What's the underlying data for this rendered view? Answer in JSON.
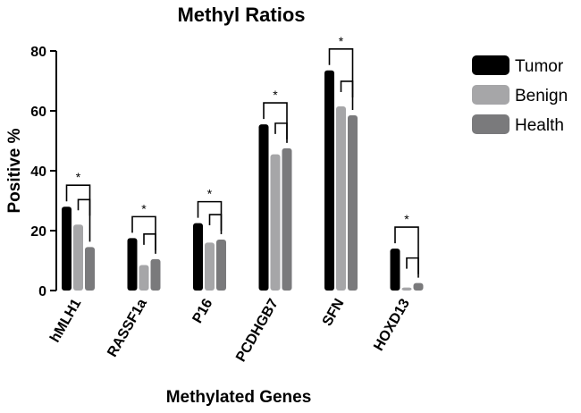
{
  "chart_data": {
    "type": "bar",
    "title": "Methyl Ratios",
    "xlabel": "Methylated Genes",
    "ylabel": "Positive %",
    "ylim": [
      0,
      80
    ],
    "yticks": [
      0,
      20,
      40,
      60,
      80
    ],
    "categories": [
      "hMLH1",
      "RASSF1a",
      "P16",
      "PCDHGB7",
      "SFN",
      "HOXD13"
    ],
    "series": [
      {
        "name": "Tumor",
        "color": "#000000",
        "values": [
          28,
          17.5,
          22.5,
          55.5,
          73.5,
          14
        ]
      },
      {
        "name": "Benign",
        "color": "#a6a6a8",
        "values": [
          22,
          8.5,
          16,
          45.5,
          61.5,
          1
        ]
      },
      {
        "name": "Health",
        "color": "#7a7a7c",
        "values": [
          14.5,
          10.5,
          17,
          47.5,
          58.5,
          2.5
        ]
      }
    ],
    "legend_position": "top-right",
    "significance_marker": "*"
  }
}
